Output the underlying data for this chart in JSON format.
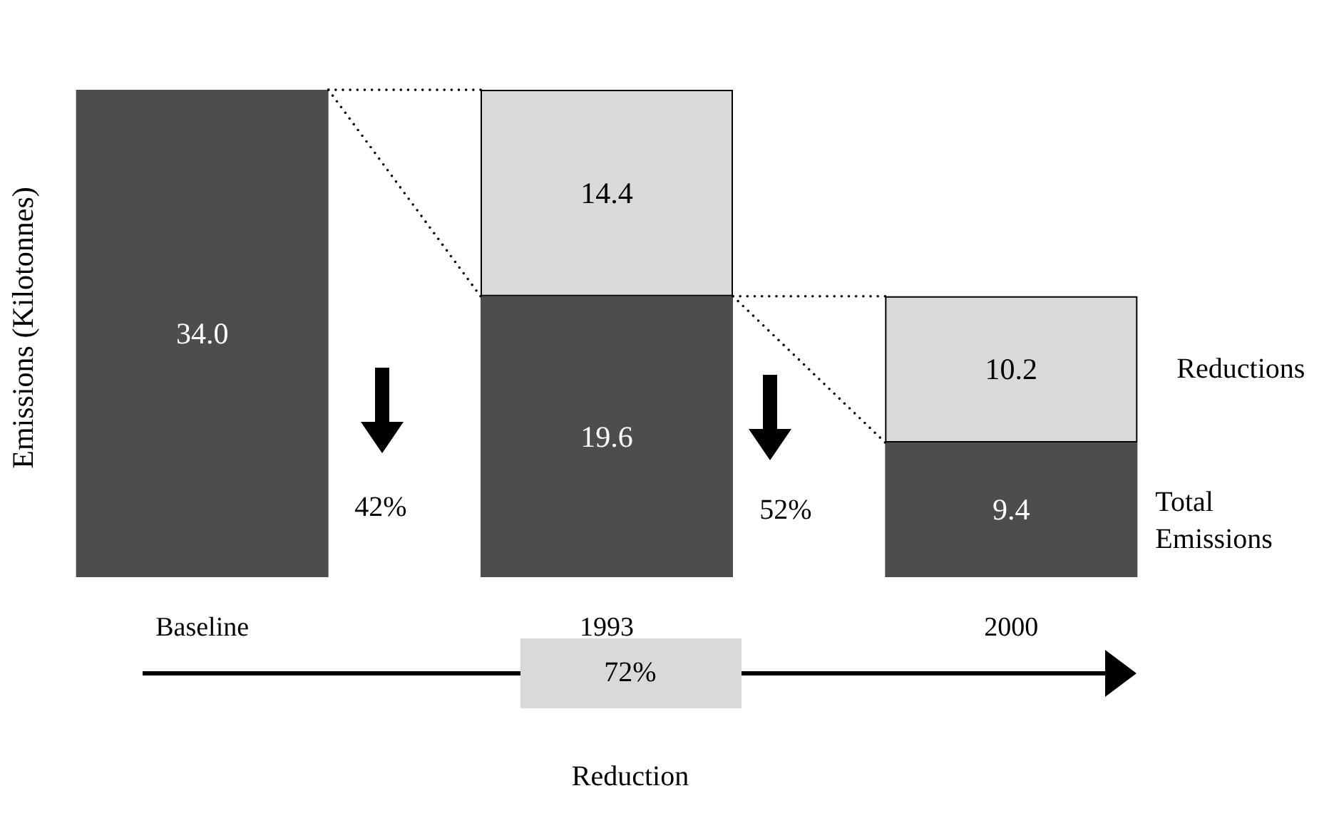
{
  "chart_data": {
    "type": "bar",
    "ylabel": "Emissions (Kilotonnes)",
    "categories": [
      "Baseline",
      "1993",
      "2000"
    ],
    "stacked": true,
    "legend": "right",
    "series": [
      {
        "name": "Total Emissions",
        "color": "#4d4d4d",
        "values": [
          34.0,
          19.6,
          9.4
        ],
        "value_labels": [
          "34.0",
          "19.6",
          "9.4"
        ]
      },
      {
        "name": "Reductions",
        "color": "#d9d9d9",
        "values": [
          null,
          14.4,
          10.2
        ],
        "value_labels": [
          null,
          "14.4",
          "10.2"
        ]
      }
    ],
    "annotations": [
      "42%",
      "52%",
      "72%",
      "Reduction"
    ]
  }
}
